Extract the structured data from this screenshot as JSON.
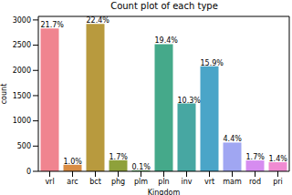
{
  "chart_data": {
    "type": "bar",
    "title": "Count plot of each type",
    "x_label": "Kingdom",
    "y_label": "count",
    "categories": [
      "vrl",
      "arc",
      "bct",
      "phg",
      "plm",
      "pln",
      "inv",
      "vrt",
      "mam",
      "rod",
      "pri"
    ],
    "values": [
      2830,
      130,
      2920,
      220,
      18,
      2520,
      1345,
      2080,
      570,
      215,
      180
    ],
    "annotations": [
      "21.7%",
      "1.0%",
      "22.4%",
      "1.7%",
      "0.1%",
      "19.4%",
      "10.3%",
      "15.9%",
      "4.4%",
      "1.7%",
      "1.4%"
    ],
    "colors": [
      "#f0848f",
      "#d98c43",
      "#b89a3e",
      "#8ea13b",
      "#4caa52",
      "#45a98a",
      "#47a7a2",
      "#4aa5c8",
      "#a0a6f2",
      "#d68cf0",
      "#f08bd2"
    ],
    "ylim": [
      0,
      3070
    ],
    "yticks": [
      0,
      500,
      1000,
      1500,
      2000,
      2500,
      3000
    ],
    "grid": false
  }
}
